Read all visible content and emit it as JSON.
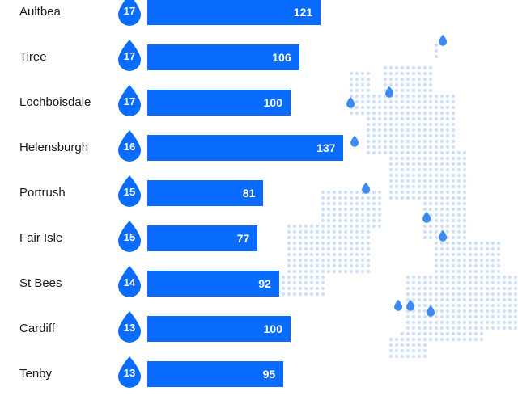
{
  "chart_data": {
    "type": "bar",
    "orientation": "horizontal",
    "categories": [
      "Aultbea",
      "Tiree",
      "Lochboisdale",
      "Helensburgh",
      "Portrush",
      "Fair Isle",
      "St Bees",
      "Cardiff",
      "Tenby"
    ],
    "values": [
      121,
      106,
      100,
      137,
      81,
      77,
      92,
      100,
      95
    ],
    "drop_values": [
      17,
      17,
      17,
      16,
      15,
      15,
      14,
      13,
      13
    ],
    "xlim": [
      0,
      140
    ],
    "grid": false,
    "colors": {
      "bar": "#0a6cff",
      "drop": "#0a6cff",
      "map_dot": "#cfe0fa",
      "map_marker": "#3d8bf2"
    }
  }
}
